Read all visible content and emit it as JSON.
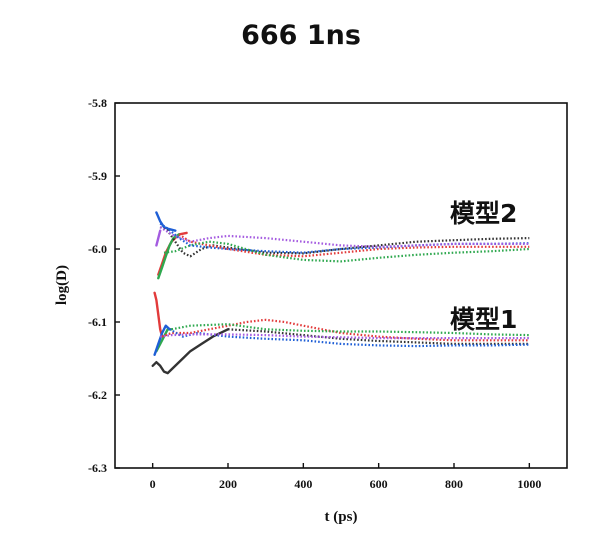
{
  "chart_data": {
    "type": "line",
    "title": "666 1ns",
    "xlabel": "t (ps)",
    "ylabel": "log(D)",
    "xlim": [
      -100,
      1100
    ],
    "ylim": [
      -6.3,
      -5.8
    ],
    "xticks": [
      0,
      200,
      400,
      600,
      800,
      1000
    ],
    "xtick_labels": [
      "0",
      "200",
      "400",
      "600",
      "800",
      "1000"
    ],
    "yticks": [
      -6.3,
      -6.2,
      -6.1,
      -6.0,
      -5.9,
      -5.8
    ],
    "ytick_labels": [
      "-6.3",
      "-6.2",
      "-6.1",
      "-6.0",
      "-5.9",
      "-5.8"
    ],
    "grid": false,
    "legend": "none",
    "annotations": [
      {
        "text": "模型2",
        "x": 795,
        "y": -5.955
      },
      {
        "text": "模型1",
        "x": 795,
        "y": -6.1
      }
    ],
    "series": [
      {
        "color": "#1f5fd6",
        "dash": "solid",
        "x": [
          10,
          20,
          30,
          40,
          60
        ],
        "y": [
          -5.95,
          -5.962,
          -5.97,
          -5.972,
          -5.975
        ]
      },
      {
        "color": "#e23b3b",
        "dash": "solid",
        "x": [
          15,
          25,
          35,
          50,
          70,
          90
        ],
        "y": [
          -6.035,
          -6.02,
          -6.005,
          -5.99,
          -5.98,
          -5.978
        ]
      },
      {
        "color": "#2fa84f",
        "dash": "solid",
        "x": [
          15,
          25,
          35,
          45,
          55,
          70
        ],
        "y": [
          -6.04,
          -6.025,
          -6.01,
          -5.995,
          -5.985,
          -5.98
        ]
      },
      {
        "color": "#a45be0",
        "dash": "solid",
        "x": [
          10,
          15,
          20
        ],
        "y": [
          -5.995,
          -5.985,
          -5.975
        ]
      },
      {
        "color": "#333333",
        "dash": "dot",
        "x": [
          20,
          40,
          60,
          80,
          100,
          130,
          160,
          200,
          300,
          400,
          500,
          600,
          700,
          800,
          900,
          1000
        ],
        "y": [
          -5.97,
          -5.975,
          -5.99,
          -6.005,
          -6.01,
          -6.0,
          -5.995,
          -5.998,
          -6.005,
          -6.006,
          -6.0,
          -5.995,
          -5.99,
          -5.988,
          -5.986,
          -5.985
        ]
      },
      {
        "color": "#e23b3b",
        "dash": "dot",
        "x": [
          70,
          100,
          150,
          200,
          300,
          400,
          500,
          600,
          700,
          800,
          900,
          1000
        ],
        "y": [
          -5.98,
          -5.99,
          -5.995,
          -6.0,
          -6.008,
          -6.01,
          -6.005,
          -6.0,
          -5.998,
          -5.997,
          -5.997,
          -5.997
        ]
      },
      {
        "color": "#2fa84f",
        "dash": "dot",
        "x": [
          30,
          60,
          100,
          150,
          200,
          300,
          400,
          500,
          600,
          700,
          800,
          900,
          1000
        ],
        "y": [
          -6.005,
          -6.003,
          -5.995,
          -5.99,
          -5.993,
          -6.008,
          -6.015,
          -6.017,
          -6.012,
          -6.008,
          -6.005,
          -6.003,
          -6.0
        ]
      },
      {
        "color": "#1f5fd6",
        "dash": "dot",
        "x": [
          20,
          40,
          70,
          100,
          150,
          200,
          300,
          400,
          500,
          600,
          700,
          800,
          900,
          1000
        ],
        "y": [
          -5.965,
          -5.972,
          -5.985,
          -5.995,
          -5.998,
          -6.0,
          -6.003,
          -6.005,
          -6.0,
          -5.998,
          -5.995,
          -5.993,
          -5.993,
          -5.992
        ]
      },
      {
        "color": "#a45be0",
        "dash": "dot",
        "x": [
          20,
          50,
          100,
          150,
          200,
          300,
          400,
          500,
          600,
          700,
          800,
          900,
          1000
        ],
        "y": [
          -5.97,
          -5.98,
          -5.99,
          -5.985,
          -5.982,
          -5.985,
          -5.99,
          -5.995,
          -5.997,
          -5.995,
          -5.993,
          -5.993,
          -5.993
        ]
      },
      {
        "color": "#333333",
        "dash": "solid",
        "x": [
          0,
          10,
          20,
          30,
          40,
          60,
          80,
          100,
          130,
          160,
          200
        ],
        "y": [
          -6.16,
          -6.155,
          -6.16,
          -6.168,
          -6.17,
          -6.16,
          -6.15,
          -6.14,
          -6.13,
          -6.12,
          -6.11
        ]
      },
      {
        "color": "#e23b3b",
        "dash": "solid",
        "x": [
          5,
          10,
          15,
          20,
          25
        ],
        "y": [
          -6.06,
          -6.07,
          -6.09,
          -6.11,
          -6.12
        ]
      },
      {
        "color": "#2fa84f",
        "dash": "solid",
        "x": [
          10,
          20,
          30,
          40,
          50
        ],
        "y": [
          -6.14,
          -6.13,
          -6.12,
          -6.11,
          -6.11
        ]
      },
      {
        "color": "#1f5fd6",
        "dash": "solid",
        "x": [
          5,
          15,
          25,
          35,
          45
        ],
        "y": [
          -6.145,
          -6.13,
          -6.115,
          -6.105,
          -6.11
        ]
      },
      {
        "color": "#333333",
        "dash": "dot",
        "x": [
          200,
          300,
          400,
          500,
          600,
          700,
          800,
          900,
          1000
        ],
        "y": [
          -6.11,
          -6.113,
          -6.118,
          -6.123,
          -6.126,
          -6.128,
          -6.13,
          -6.13,
          -6.13
        ]
      },
      {
        "color": "#e23b3b",
        "dash": "dot",
        "x": [
          25,
          50,
          100,
          150,
          200,
          250,
          300,
          350,
          400,
          500,
          600,
          700,
          800,
          900,
          1000
        ],
        "y": [
          -6.12,
          -6.115,
          -6.115,
          -6.11,
          -6.105,
          -6.1,
          -6.097,
          -6.1,
          -6.105,
          -6.115,
          -6.12,
          -6.123,
          -6.125,
          -6.125,
          -6.125
        ]
      },
      {
        "color": "#2fa84f",
        "dash": "dot",
        "x": [
          50,
          100,
          200,
          300,
          400,
          500,
          600,
          700,
          800,
          900,
          1000
        ],
        "y": [
          -6.11,
          -6.105,
          -6.103,
          -6.11,
          -6.112,
          -6.113,
          -6.113,
          -6.114,
          -6.115,
          -6.117,
          -6.118
        ]
      },
      {
        "color": "#1f5fd6",
        "dash": "dot",
        "x": [
          45,
          80,
          120,
          200,
          300,
          400,
          500,
          600,
          700,
          800,
          900,
          1000
        ],
        "y": [
          -6.11,
          -6.12,
          -6.115,
          -6.12,
          -6.123,
          -6.125,
          -6.13,
          -6.132,
          -6.133,
          -6.132,
          -6.132,
          -6.131
        ]
      },
      {
        "color": "#a45be0",
        "dash": "dot",
        "x": [
          20,
          50,
          100,
          200,
          300,
          400,
          500,
          600,
          700,
          800,
          900,
          1000
        ],
        "y": [
          -6.12,
          -6.118,
          -6.117,
          -6.117,
          -6.118,
          -6.12,
          -6.121,
          -6.122,
          -6.122,
          -6.122,
          -6.122,
          -6.122
        ]
      }
    ]
  }
}
